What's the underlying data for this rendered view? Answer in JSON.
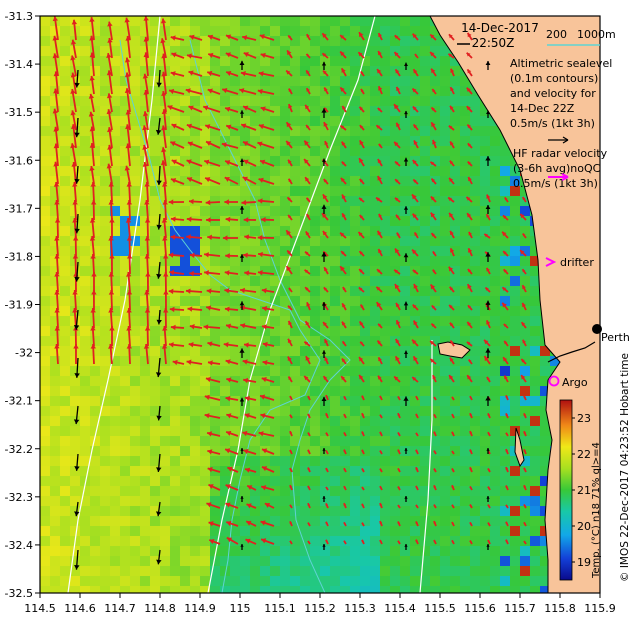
{
  "map": {
    "type": "oceanographic-map",
    "title_date": "14-Dec-2017",
    "title_time": "22:50Z",
    "depth_contours_label": "200",
    "depth_contours_label2": "1000m",
    "extent": {
      "lon": [
        114.5,
        115.9
      ],
      "lat": [
        -32.5,
        -31.3
      ]
    },
    "lon_ticks": [
      "114.5",
      "114.6",
      "114.7",
      "114.8",
      "114.9",
      "115",
      "115.1",
      "115.2",
      "115.3",
      "115.4",
      "115.5",
      "115.6",
      "115.7",
      "115.8",
      "115.9"
    ],
    "lat_ticks": [
      "-31.3",
      "-31.4",
      "-31.5",
      "-31.6",
      "-31.7",
      "-31.8",
      "-31.9",
      "-32",
      "-32.1",
      "-32.2",
      "-32.3",
      "-32.4",
      "-32.5"
    ],
    "legend": {
      "altimetric_line1": "Altimetric sealevel",
      "altimetric_line2": "(0.1m contours)",
      "altimetric_line3": "and velocity for",
      "altimetric_line4": "14-Dec 22Z",
      "altimetric_scale": "0.5m/s (1kt 3h)",
      "hf_line1": "HF radar velocity",
      "hf_line2": "(3-6h avg)noQC",
      "hf_scale": "0.5m/s (1kt 3h)",
      "drifter_label": "drifter",
      "argo_label": "Argo"
    },
    "places": [
      {
        "name": "Perth"
      }
    ],
    "colorbar": {
      "label": "Temp. (°C) n18 71% ql>=4",
      "ticks": [
        "23",
        "22",
        "21",
        "20",
        "19"
      ],
      "min": 18.5,
      "max": 23.5
    },
    "credit": "© IMOS 22-Dec-2017 04:23:52 Hobart time",
    "colors": {
      "land": "#f8c49a",
      "hf_arrow": "#e02020",
      "alt_arrow": "#000000",
      "drifter": "#ff00ff",
      "argo": "#ff00ff",
      "contour": "#ffffff",
      "depth_contour": "#5fd3d3"
    }
  }
}
